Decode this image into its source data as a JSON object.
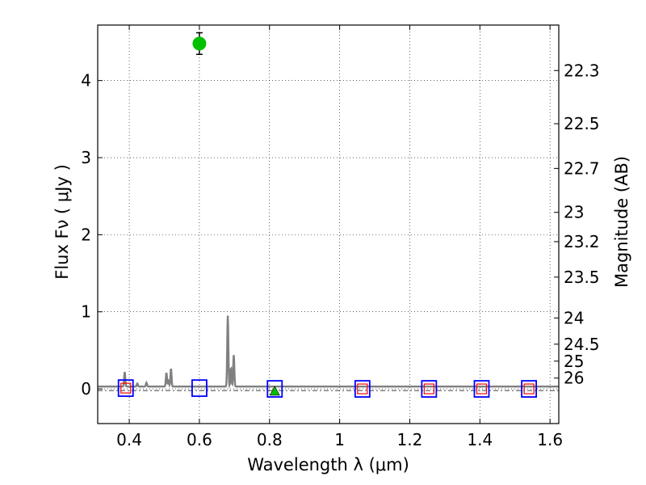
{
  "chart_data": {
    "type": "scatter",
    "xlabel": "Wavelength  λ (μm)",
    "ylabel": "Flux  Fν  ( μJy )",
    "y2label": "Magnitude (AB)",
    "xlim": [
      0.31,
      1.625
    ],
    "ylim": [
      -0.45,
      4.72
    ],
    "xticks": [
      0.4,
      0.6,
      0.8,
      1.0,
      1.2,
      1.4,
      1.6
    ],
    "xtick_labels": [
      "0.4",
      "0.6",
      "0.8",
      "1",
      "1.2",
      "1.4",
      "1.6"
    ],
    "yticks": [
      0,
      1,
      2,
      3,
      4
    ],
    "ytick_labels": [
      "0",
      "1",
      "2",
      "3",
      "4"
    ],
    "y2ticks": [
      {
        "label": "22.3",
        "flux": 4.13
      },
      {
        "label": "22.5",
        "flux": 3.44
      },
      {
        "label": "22.7",
        "flux": 2.86
      },
      {
        "label": "23",
        "flux": 2.29
      },
      {
        "label": "23.2",
        "flux": 1.91
      },
      {
        "label": "23.5",
        "flux": 1.45
      },
      {
        "label": "24",
        "flux": 0.92
      },
      {
        "label": "24.5",
        "flux": 0.58
      },
      {
        "label": "25",
        "flux": 0.36
      },
      {
        "label": "26",
        "flux": 0.14
      }
    ],
    "grid": true,
    "colors": {
      "model": "#808080",
      "detection": "#00c000",
      "open_box": "#0000ff",
      "inner_box": "#ff0000",
      "errorbar": "#000000",
      "zero_line": "#000000"
    },
    "model_spectrum": {
      "name": "best-fit template",
      "continuum": 0.03,
      "lines": [
        {
          "x": 0.387,
          "peak": 0.22
        },
        {
          "x": 0.423,
          "peak": 0.07
        },
        {
          "x": 0.449,
          "peak": 0.08
        },
        {
          "x": 0.506,
          "peak": 0.21
        },
        {
          "x": 0.512,
          "peak": 0.1
        },
        {
          "x": 0.519,
          "peak": 0.26
        },
        {
          "x": 0.681,
          "peak": 0.95
        },
        {
          "x": 0.69,
          "peak": 0.27
        },
        {
          "x": 0.698,
          "peak": 0.44
        }
      ]
    },
    "detections": [
      {
        "x": 0.6,
        "y": 4.48,
        "yerr": 0.14
      }
    ],
    "triangle_points": [
      {
        "x": 0.815,
        "y": -0.03
      }
    ],
    "upper_limit_boxes": [
      {
        "x": 0.39,
        "y": 0.01,
        "inner": true
      },
      {
        "x": 0.6,
        "y": 0.01,
        "inner": false
      },
      {
        "x": 0.815,
        "y": 0.0,
        "inner": false
      },
      {
        "x": 1.065,
        "y": 0.0,
        "inner": true
      },
      {
        "x": 1.255,
        "y": 0.0,
        "inner": true
      },
      {
        "x": 1.405,
        "y": 0.0,
        "inner": true
      },
      {
        "x": 1.54,
        "y": 0.0,
        "inner": true
      }
    ]
  }
}
